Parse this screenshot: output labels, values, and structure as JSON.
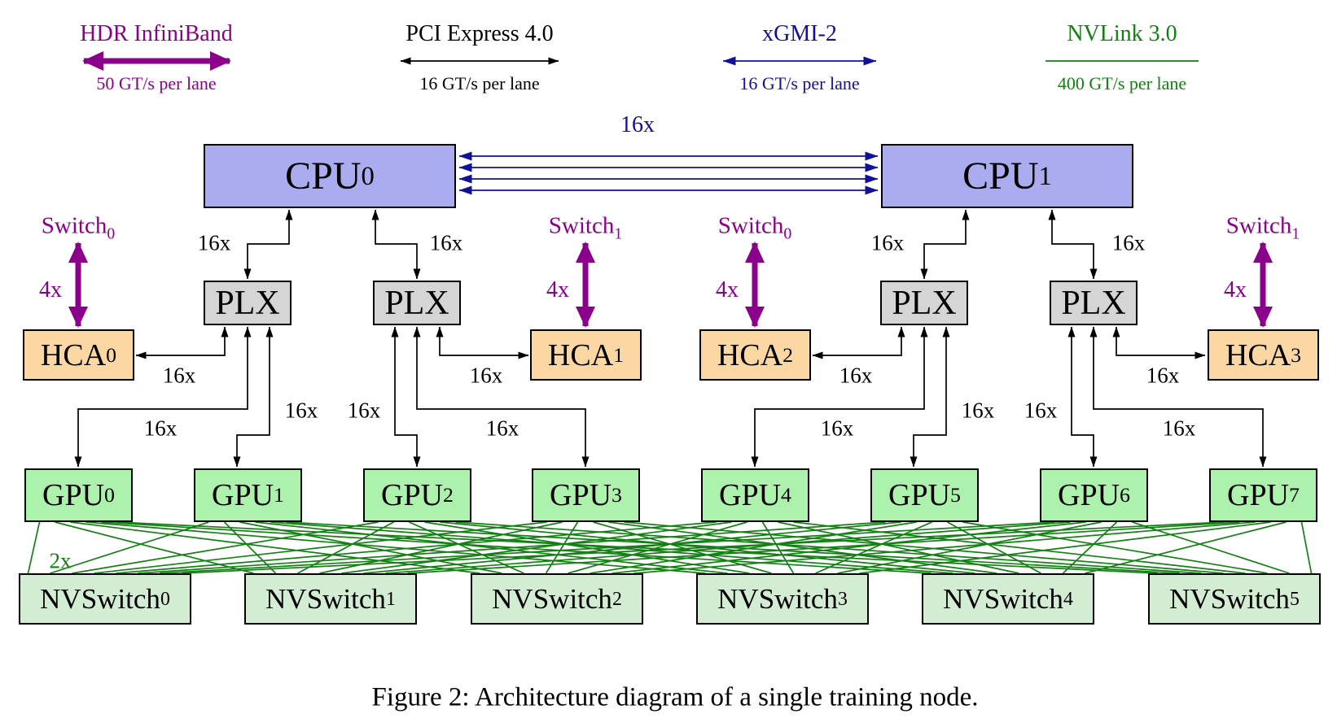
{
  "caption": "Figure 2: Architecture diagram of a single training node.",
  "legend": {
    "hdr_infiniband": {
      "title": "HDR InfiniBand",
      "rate": "50 GT/s per lane"
    },
    "pci_express": {
      "title": "PCI Express 4.0",
      "rate": "16 GT/s per lane"
    },
    "xgmi": {
      "title": "xGMI-2",
      "rate": "16 GT/s per lane"
    },
    "nvlink": {
      "title": "NVLink 3.0",
      "rate": "400 GT/s per lane"
    }
  },
  "colors": {
    "infiniband": "#8B008B",
    "pcie": "#000000",
    "xgmi": "#10109A",
    "nvlink": "#128012",
    "cpu_fill": "#ABABF0",
    "plx_fill": "#D5D5D5",
    "hca_fill": "#FBD8A3",
    "gpu_fill": "#ACF1AC",
    "nvswitch_fill": "#D3EDD3"
  },
  "nodes": {
    "cpus": [
      {
        "base": "CPU",
        "sub": "0"
      },
      {
        "base": "CPU",
        "sub": "1"
      }
    ],
    "plx": [
      {
        "label": "PLX"
      },
      {
        "label": "PLX"
      },
      {
        "label": "PLX"
      },
      {
        "label": "PLX"
      }
    ],
    "hcas": [
      {
        "base": "HCA",
        "sub": "0"
      },
      {
        "base": "HCA",
        "sub": "1"
      },
      {
        "base": "HCA",
        "sub": "2"
      },
      {
        "base": "HCA",
        "sub": "3"
      }
    ],
    "ib_switches": [
      {
        "base": "Switch",
        "sub": "0"
      },
      {
        "base": "Switch",
        "sub": "1"
      },
      {
        "base": "Switch",
        "sub": "0"
      },
      {
        "base": "Switch",
        "sub": "1"
      }
    ],
    "gpus": [
      {
        "base": "GPU",
        "sub": "0"
      },
      {
        "base": "GPU",
        "sub": "1"
      },
      {
        "base": "GPU",
        "sub": "2"
      },
      {
        "base": "GPU",
        "sub": "3"
      },
      {
        "base": "GPU",
        "sub": "4"
      },
      {
        "base": "GPU",
        "sub": "5"
      },
      {
        "base": "GPU",
        "sub": "6"
      },
      {
        "base": "GPU",
        "sub": "7"
      }
    ],
    "nvswitches": [
      {
        "base": "NVSwitch",
        "sub": "0"
      },
      {
        "base": "NVSwitch",
        "sub": "1"
      },
      {
        "base": "NVSwitch",
        "sub": "2"
      },
      {
        "base": "NVSwitch",
        "sub": "3"
      },
      {
        "base": "NVSwitch",
        "sub": "4"
      },
      {
        "base": "NVSwitch",
        "sub": "5"
      }
    ]
  },
  "link_labels": {
    "xgmi_width": "16x",
    "pcie_width": "16x",
    "infiniband_width": "4x",
    "nvlink_width": "2x"
  }
}
